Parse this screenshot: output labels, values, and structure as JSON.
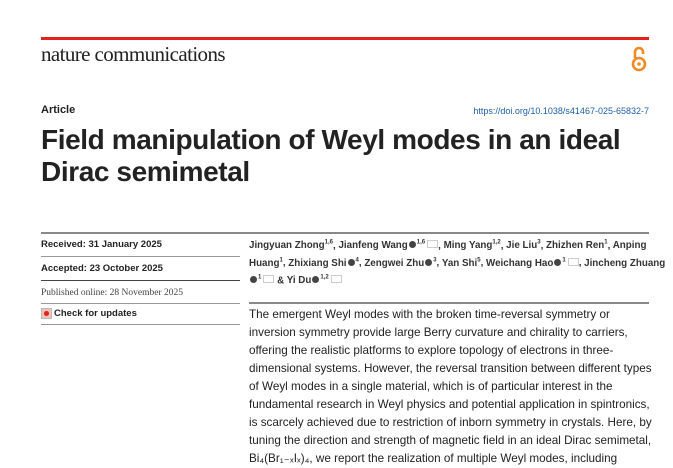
{
  "journal": "nature communications",
  "colors": {
    "brand_red": "#e2231a",
    "open_access": "#f08a24",
    "doi_link": "#1f5fa8"
  },
  "open_access_icon": "open-access-lock",
  "article_type": "Article",
  "doi": "https://doi.org/10.1038/s41467-025-65832-7",
  "title": "Field manipulation of Weyl modes in an ideal Dirac semimetal",
  "dates": {
    "received": "Received: 31 January 2025",
    "accepted": "Accepted: 23 October 2025",
    "published": "Published online: 28 November 2025"
  },
  "check_updates": "Check for updates",
  "authors": [
    {
      "name": "Jingyuan Zhong",
      "aff": "1,6",
      "orcid": false,
      "mail": false
    },
    {
      "name": "Jianfeng Wang",
      "aff": "1,6",
      "orcid": true,
      "mail": true
    },
    {
      "name": "Ming Yang",
      "aff": "1,2",
      "orcid": false,
      "mail": false
    },
    {
      "name": "Jie Liu",
      "aff": "3",
      "orcid": false,
      "mail": false
    },
    {
      "name": "Zhizhen Ren",
      "aff": "1",
      "orcid": false,
      "mail": false
    },
    {
      "name": "Anping Huang",
      "aff": "1",
      "orcid": false,
      "mail": false
    },
    {
      "name": "Zhixiang Shi",
      "aff": "4",
      "orcid": true,
      "mail": false
    },
    {
      "name": "Zengwei Zhu",
      "aff": "3",
      "orcid": true,
      "mail": false
    },
    {
      "name": "Yan Shi",
      "aff": "5",
      "orcid": false,
      "mail": false
    },
    {
      "name": "Weichang Hao",
      "aff": "1",
      "orcid": true,
      "mail": true
    },
    {
      "name": "Jincheng Zhuang",
      "aff": "1",
      "orcid": true,
      "mail": true
    },
    {
      "name": "Yi Du",
      "aff": "1,2",
      "orcid": true,
      "mail": true
    }
  ],
  "abstract": "The emergent Weyl modes with the broken time-reversal symmetry or inversion symmetry provide large Berry curvature and chirality to carriers, offering the realistic platforms to explore topology of electrons in three-dimensional systems. However, the reversal transition between different types of Weyl modes in a single material, which is of particular interest in the fundamental research in Weyl physics and potential application in spintronics, is scarcely achieved due to restriction of inborn symmetry in crystals. Here, by tuning the direction and strength of magnetic field in an ideal Dirac semimetal, Bi₄(Br₁₋ₓIₓ)₄, we report the realization of multiple Weyl modes, including"
}
